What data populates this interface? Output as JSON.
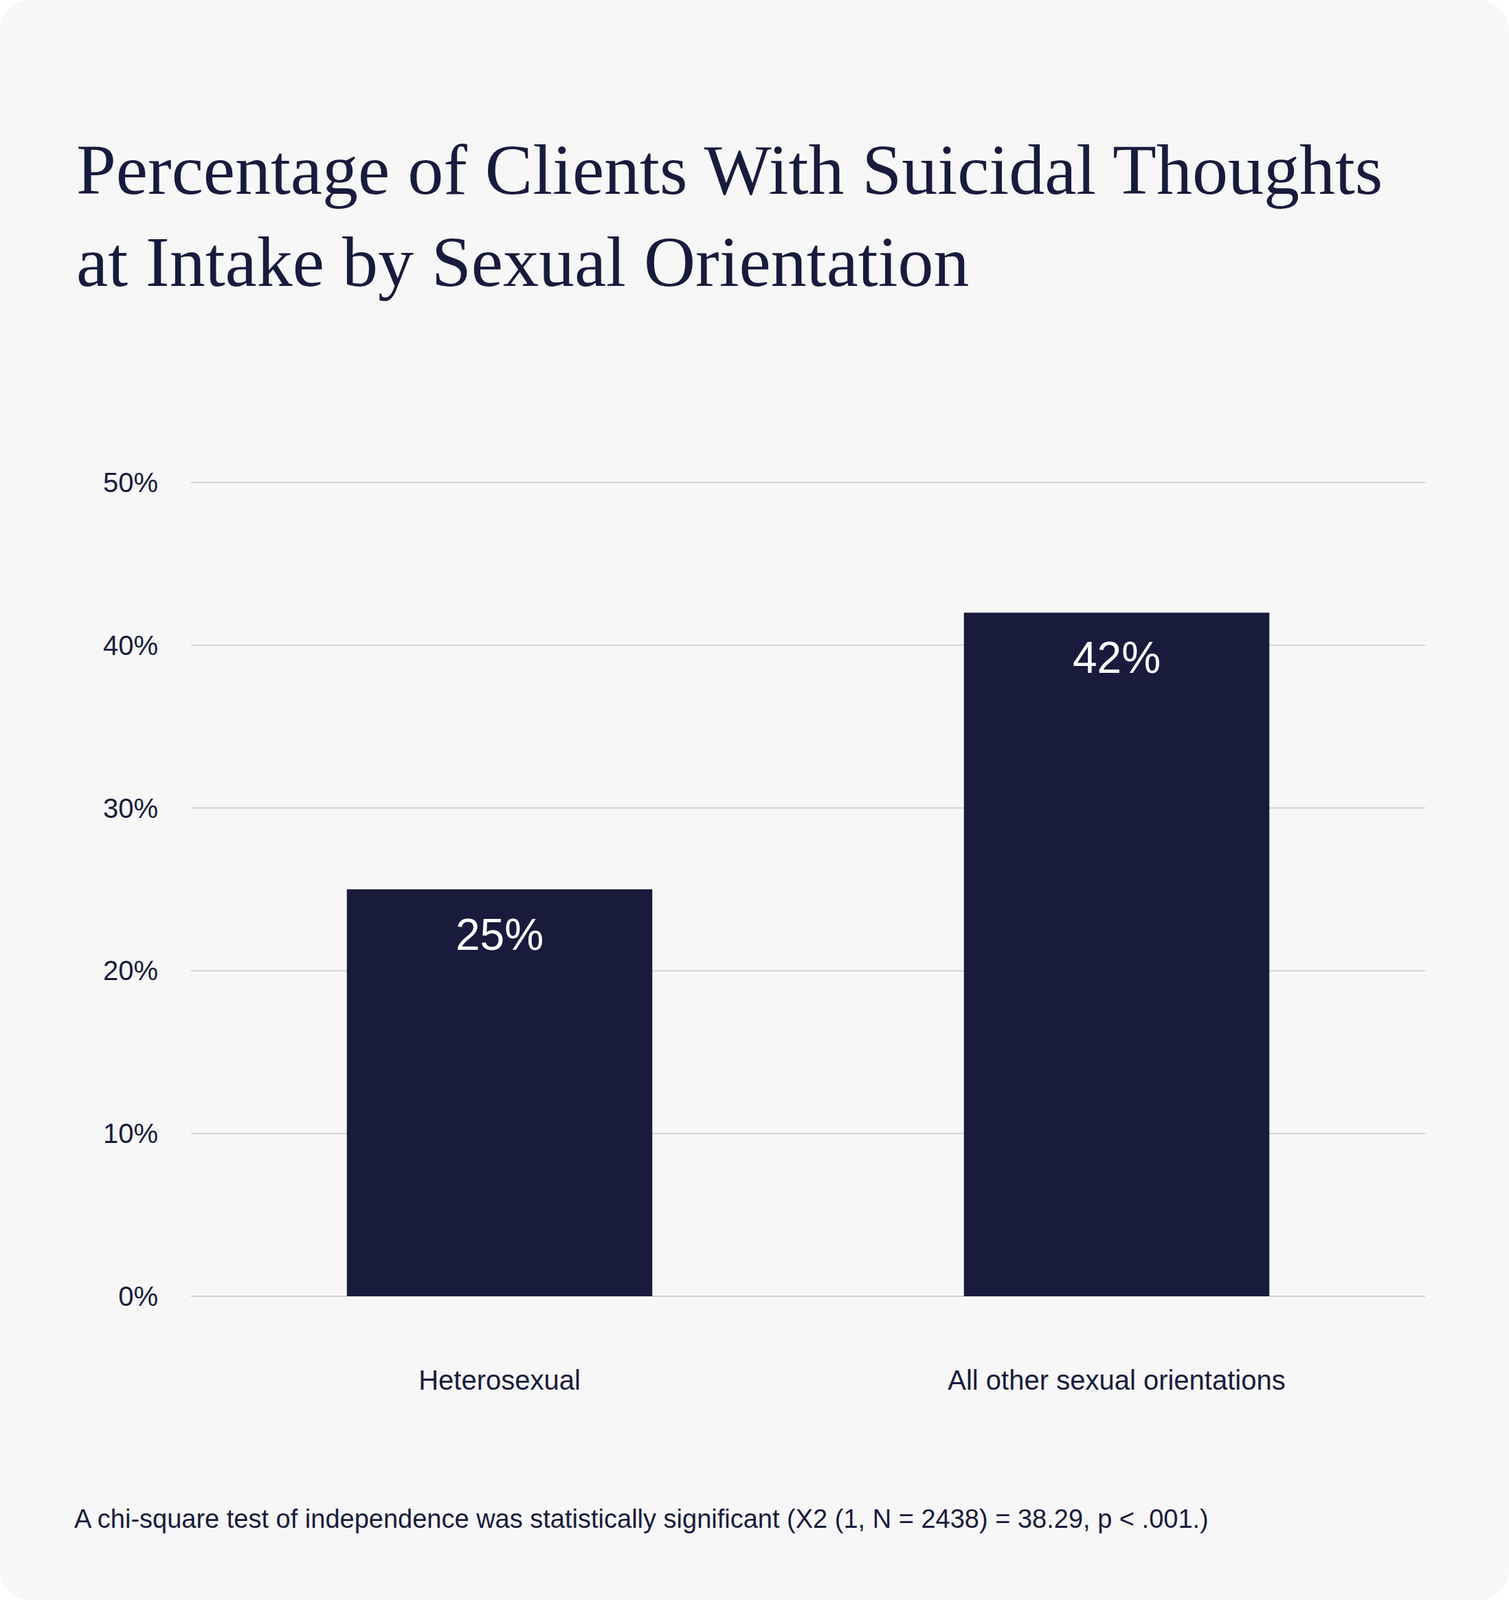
{
  "chart_data": {
    "type": "bar",
    "title": "Percentage of Clients With Suicidal Thoughts at Intake by Sexual Orientation",
    "categories": [
      "Heterosexual",
      "All other sexual orientations"
    ],
    "values": [
      25,
      42
    ],
    "value_labels": [
      "25%",
      "42%"
    ],
    "data_labels": true,
    "color": "#181b3c",
    "ylim": [
      0,
      50
    ],
    "yticks": [
      {
        "value": 0,
        "label": "0%"
      },
      {
        "value": 10,
        "label": "10%"
      },
      {
        "value": 20,
        "label": "20%"
      },
      {
        "value": 30,
        "label": "30%"
      },
      {
        "value": 40,
        "label": "40%"
      },
      {
        "value": 50,
        "label": "50%"
      }
    ],
    "grid": true,
    "annotations": [
      "A chi-square test of independence was statistically significant (X2 (1, N = 2438) = 38.29, p < .001.)"
    ]
  }
}
